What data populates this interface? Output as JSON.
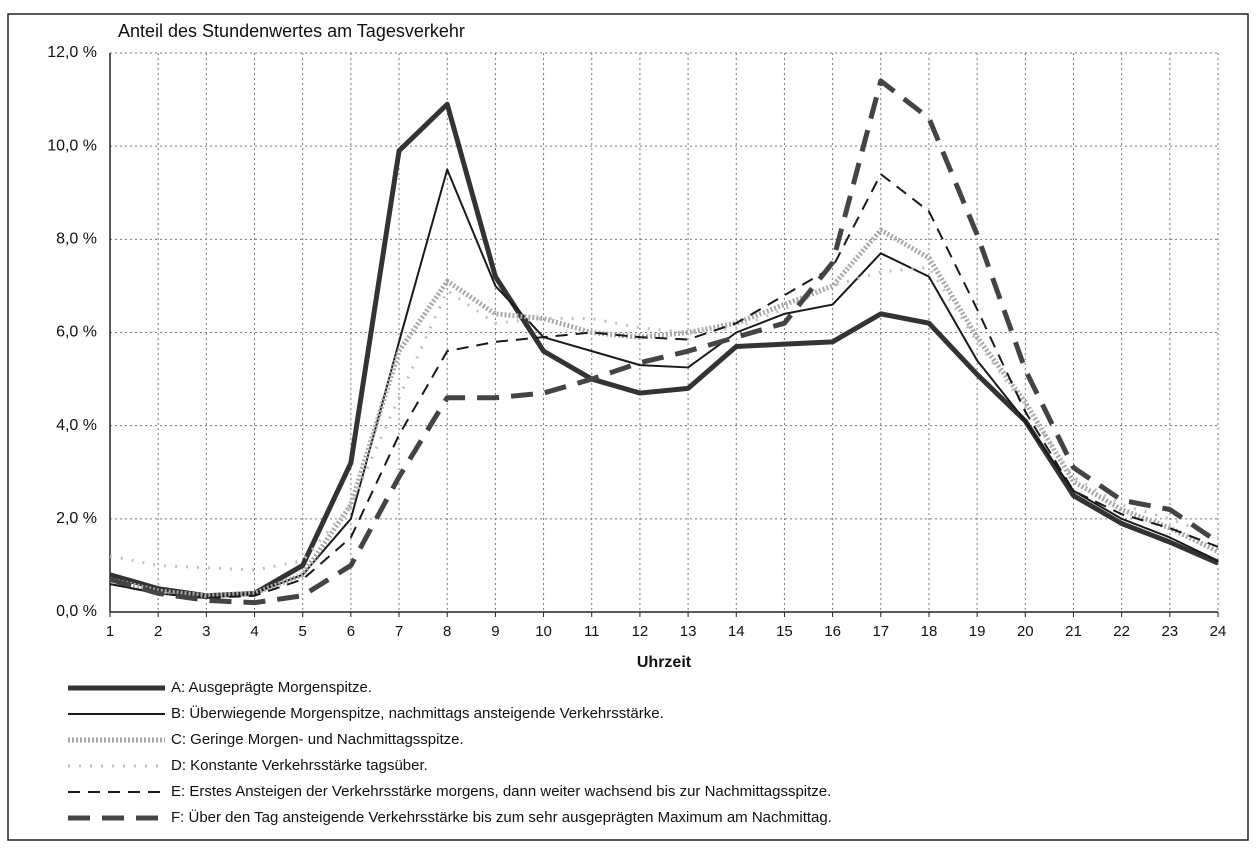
{
  "chart_data": {
    "type": "line",
    "title": "Anteil des Stundenwertes am Tagesverkehr",
    "x_label": "Uhrzeit",
    "x": [
      1,
      2,
      3,
      4,
      5,
      6,
      7,
      8,
      9,
      10,
      11,
      12,
      13,
      14,
      15,
      16,
      17,
      18,
      19,
      20,
      21,
      22,
      23,
      24
    ],
    "xlim": [
      1,
      24
    ],
    "xticks": [
      1,
      2,
      3,
      4,
      5,
      6,
      7,
      8,
      9,
      10,
      11,
      12,
      13,
      14,
      15,
      16,
      17,
      18,
      19,
      20,
      21,
      22,
      23,
      24
    ],
    "ylim": [
      0,
      12
    ],
    "yticks": [
      {
        "value": 0,
        "label": "0,0 %"
      },
      {
        "value": 2,
        "label": "2,0 %"
      },
      {
        "value": 4,
        "label": "4,0 %"
      },
      {
        "value": 6,
        "label": "6,0 %"
      },
      {
        "value": 8,
        "label": "8,0 %"
      },
      {
        "value": 10,
        "label": "10,0 %"
      },
      {
        "value": 12,
        "label": "12,0 %"
      }
    ],
    "grid": true,
    "series": [
      {
        "name": "A: Ausgeprägte Morgenspitze.",
        "color": "#333333",
        "line_width": 5,
        "dash": "none",
        "values": [
          0.8,
          0.5,
          0.35,
          0.4,
          1.0,
          3.2,
          9.9,
          10.9,
          7.2,
          5.6,
          5.0,
          4.7,
          4.8,
          5.7,
          5.75,
          5.8,
          6.4,
          6.2,
          5.1,
          4.1,
          2.5,
          1.9,
          1.5,
          1.05
        ]
      },
      {
        "name": "B: Überwiegende Morgenspitze, nachmittags ansteigende Verkehrsstärke.",
        "color": "#1a1a1a",
        "line_width": 2,
        "dash": "none",
        "values": [
          0.6,
          0.4,
          0.3,
          0.4,
          0.8,
          2.0,
          5.8,
          9.5,
          7.0,
          5.9,
          5.6,
          5.3,
          5.25,
          6.0,
          6.4,
          6.6,
          7.7,
          7.2,
          5.4,
          4.1,
          2.6,
          2.0,
          1.6,
          1.1
        ]
      },
      {
        "name": "C: Geringe Morgen- und  Nachmittagsspitze.",
        "color": "#a8a8a8",
        "line_width": 5,
        "dash": "2,2",
        "values": [
          0.7,
          0.45,
          0.35,
          0.4,
          0.8,
          2.3,
          5.6,
          7.1,
          6.4,
          6.3,
          6.0,
          5.9,
          6.0,
          6.2,
          6.6,
          7.0,
          8.2,
          7.6,
          5.9,
          4.5,
          2.8,
          2.2,
          1.8,
          1.3
        ]
      },
      {
        "name": "D: Konstante Verkehrsstärke tagsüber.",
        "color": "#c0c0c0",
        "line_width": 3,
        "dash": "2,9",
        "values": [
          1.2,
          1.0,
          0.95,
          0.9,
          1.1,
          2.3,
          4.6,
          6.9,
          6.2,
          6.3,
          6.3,
          6.1,
          6.0,
          6.1,
          6.5,
          7.0,
          7.3,
          7.4,
          5.8,
          4.4,
          2.9,
          2.3,
          2.0,
          1.6
        ]
      },
      {
        "name": "E: Erstes Ansteigen der Verkehrsstärke morgens, dann weiter wachsend bis zur Nachmittagsspitze.",
        "color": "#1a1a1a",
        "line_width": 2,
        "dash": "12,8",
        "values": [
          0.6,
          0.4,
          0.3,
          0.35,
          0.7,
          1.6,
          3.8,
          5.6,
          5.8,
          5.9,
          6.0,
          5.9,
          5.85,
          6.2,
          6.8,
          7.4,
          9.4,
          8.6,
          6.5,
          4.3,
          2.6,
          2.1,
          1.8,
          1.4
        ]
      },
      {
        "name": "F: Über den Tag ansteigende Verkehrsstärke bis zum sehr ausgeprägten Maximum am Nachmittag.",
        "color": "#444444",
        "line_width": 5,
        "dash": "22,12",
        "values": [
          0.7,
          0.4,
          0.25,
          0.2,
          0.35,
          1.0,
          2.9,
          4.6,
          4.6,
          4.7,
          5.0,
          5.35,
          5.6,
          5.9,
          6.2,
          7.5,
          11.4,
          10.6,
          8.1,
          5.2,
          3.1,
          2.4,
          2.2,
          1.5
        ]
      }
    ]
  }
}
